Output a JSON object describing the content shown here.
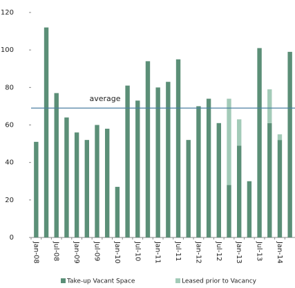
{
  "chart_data": {
    "type": "bar",
    "stacked": true,
    "categories": [
      "Jan-08",
      null,
      "Jul-08",
      null,
      "Jan-09",
      null,
      "Jul-09",
      null,
      "Jan-10",
      null,
      "Jul-10",
      null,
      "Jan-11",
      null,
      "Jul-11",
      null,
      "Jan-12",
      null,
      "Jul-12",
      null,
      "Jan-13",
      null,
      "Jul-13",
      null,
      "Jan-14",
      null
    ],
    "series": [
      {
        "name": "Take-up Vacant Space",
        "color": "#5b8f77",
        "values": [
          51,
          112,
          77,
          64,
          56,
          52,
          60,
          58,
          27,
          81,
          73,
          94,
          80,
          83,
          95,
          52,
          70,
          74,
          61,
          28,
          49,
          30,
          101,
          61,
          52,
          99
        ]
      },
      {
        "name": "Leased prior to Vacancy",
        "color": "#a3cbb8",
        "values": [
          null,
          null,
          null,
          null,
          null,
          null,
          null,
          null,
          null,
          null,
          null,
          null,
          null,
          null,
          null,
          null,
          null,
          null,
          null,
          46,
          14,
          null,
          null,
          18,
          3,
          null
        ]
      }
    ],
    "average": 69,
    "average_label": "average",
    "average_color": "#4a7ea0",
    "ylim": [
      0,
      120
    ],
    "yticks": [
      0,
      20,
      40,
      60,
      80,
      100,
      120
    ]
  }
}
